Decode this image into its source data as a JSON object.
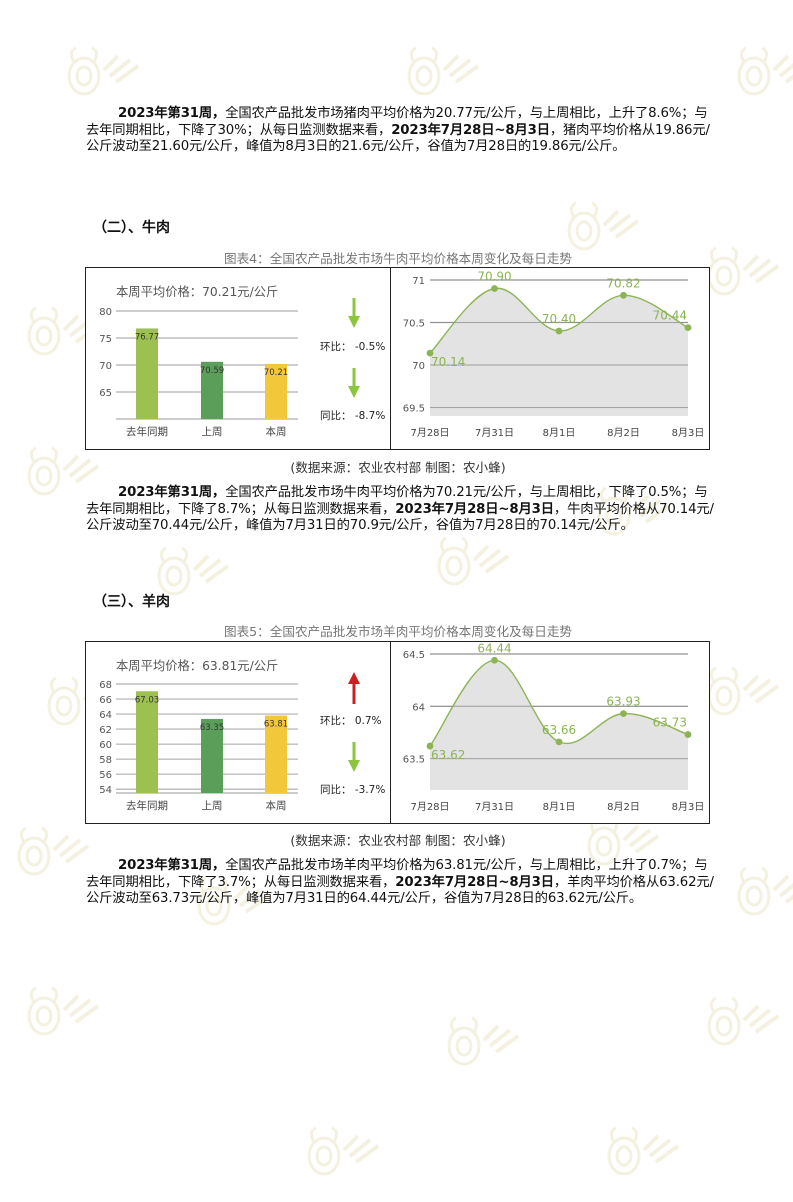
{
  "watermark_text": "农小蜂 BEEDATA",
  "paragraphs": {
    "pork": {
      "b1": "2023年第31周，",
      "t1": "全国农产品批发市场猪肉平均价格为20.77元/公斤，与上周相比，上升了8.6%；与去年同期相比，下降了30%；从每日监测数据来看，",
      "b2": "2023年7月28日~8月3日",
      "t2": "，猪肉平均价格从19.86元/公斤波动至21.60元/公斤，峰值为8月3日的21.6元/公斤，谷值为7月28日的19.86元/公斤。"
    },
    "beef": {
      "b1": "2023年第31周，",
      "t1": "全国农产品批发市场牛肉平均价格为70.21元/公斤，与上周相比，下降了0.5%；与去年同期相比，下降了8.7%；从每日监测数据来看，",
      "b2": "2023年7月28日~8月3日",
      "t2": "，牛肉平均价格从70.14元/公斤波动至70.44元/公斤，峰值为7月31日的70.9元/公斤，谷值为7月28日的70.14元/公斤。"
    },
    "mutton": {
      "b1": "2023年第31周，",
      "t1": "全国农产品批发市场羊肉平均价格为63.81元/公斤，与上周相比，上升了0.7%；与去年同期相比，下降了3.7%；从每日监测数据来看，",
      "b2": "2023年7月28日~8月3日",
      "t2": "，羊肉平均价格从63.62元/公斤波动至63.73元/公斤，峰值为7月31日的64.44元/公斤，谷值为7月28日的63.62元/公斤。"
    }
  },
  "sections": {
    "beef_title": "（二）、牛肉",
    "mutton_title": "（三）、羊肉"
  },
  "figures": {
    "beef_caption": "图表4：全国农产品批发市场牛肉平均价格本周变化及每日走势",
    "mutton_caption": "图表5：全国农产品批发市场羊肉平均价格本周变化及每日走势",
    "source": "(数据来源：农业农村部    制图：农小蜂)"
  },
  "colors": {
    "bar_last_year": "#9dc150",
    "bar_last_week": "#5a9e5a",
    "bar_this_week": "#f3c73a",
    "arrow_down": "#8cc63f",
    "arrow_up": "#cc1f1f",
    "line": "#8cb454",
    "area": "#dadada"
  },
  "chart_data": [
    {
      "type": "bar",
      "title": "本周平均价格：70.21元/公斤",
      "categories": [
        "去年同期",
        "上周",
        "本周"
      ],
      "values": [
        76.77,
        70.59,
        70.21
      ],
      "ylim": [
        60,
        80
      ],
      "yticks": [
        65,
        70,
        75,
        80
      ],
      "grid": true,
      "changes": [
        {
          "label": "环比：",
          "value": "-0.5%",
          "direction": "down"
        },
        {
          "label": "同比：",
          "value": "-8.7%",
          "direction": "down"
        }
      ]
    },
    {
      "type": "area",
      "categories": [
        "7月28日",
        "7月31日",
        "8月1日",
        "8月2日",
        "8月3日"
      ],
      "values": [
        70.14,
        70.9,
        70.4,
        70.82,
        70.44
      ],
      "ylim": [
        69.4,
        71
      ],
      "yticks": [
        69.5,
        70,
        70.5,
        71
      ],
      "grid": true
    },
    {
      "type": "bar",
      "title": "本周平均价格：63.81元/公斤",
      "categories": [
        "去年同期",
        "上周",
        "本周"
      ],
      "values": [
        67.03,
        63.35,
        63.81
      ],
      "ylim": [
        53.5,
        68
      ],
      "yticks": [
        54,
        56,
        58,
        60,
        62,
        64,
        66,
        68
      ],
      "grid": true,
      "changes": [
        {
          "label": "环比：",
          "value": "0.7%",
          "direction": "up"
        },
        {
          "label": "同比：",
          "value": "-3.7%",
          "direction": "down"
        }
      ]
    },
    {
      "type": "area",
      "categories": [
        "7月28日",
        "7月31日",
        "8月1日",
        "8月2日",
        "8月3日"
      ],
      "values": [
        63.62,
        64.44,
        63.66,
        63.93,
        63.73
      ],
      "ylim": [
        63.2,
        64.5
      ],
      "yticks": [
        63.5,
        64,
        64.5
      ],
      "grid": true
    }
  ]
}
